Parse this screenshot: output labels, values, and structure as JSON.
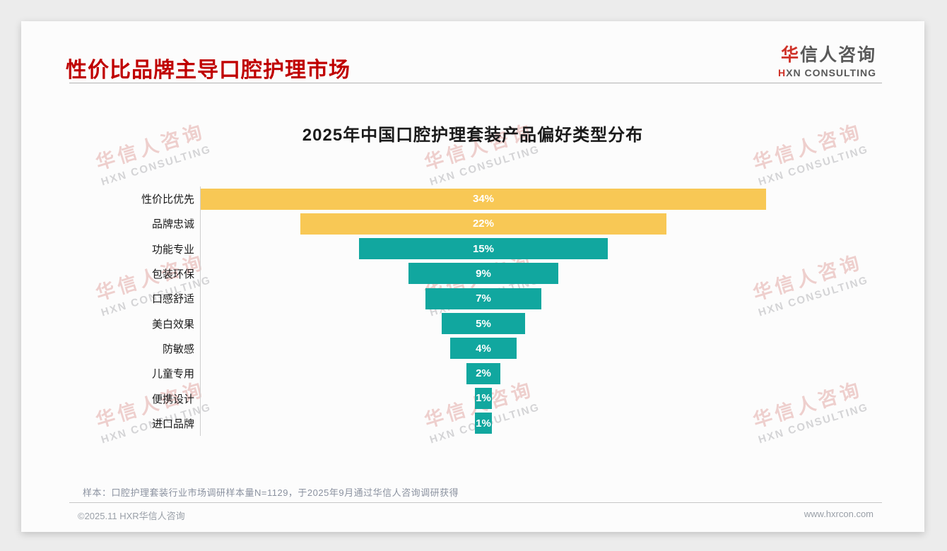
{
  "header": {
    "title": "性价比品牌主导口腔护理市场",
    "logo": {
      "zh_accent": "华",
      "zh_rest": "信人咨询",
      "en_accent": "H",
      "en_rest": "XN CONSULTING"
    }
  },
  "watermark": {
    "zh": "华信人咨询",
    "en": "HXN CONSULTING"
  },
  "chart_data": {
    "type": "bar",
    "orientation": "horizontal-centered-funnel",
    "title": "2025年中国口腔护理套装产品偏好类型分布",
    "categories": [
      "性价比优先",
      "品牌忠诚",
      "功能专业",
      "包装环保",
      "口感舒适",
      "美白效果",
      "防敏感",
      "儿童专用",
      "便携设计",
      "进口品牌"
    ],
    "values": [
      34,
      22,
      15,
      9,
      7,
      5,
      4,
      2,
      1,
      1
    ],
    "value_suffix": "%",
    "series_color_keys": [
      "highlight",
      "highlight",
      "normal",
      "normal",
      "normal",
      "normal",
      "normal",
      "normal",
      "normal",
      "normal"
    ],
    "palette": {
      "highlight": "#f8c855",
      "normal": "#11a79f"
    },
    "value_label_color": "#ffffff",
    "axis": "left-vertical-line-only",
    "xlim": [
      0,
      41.5
    ]
  },
  "footer": {
    "note": "样本：口腔护理套装行业市场调研样本量N=1129，于2025年9月通过华信人咨询调研获得",
    "copyright": "©2025.11 HXR华信人咨询",
    "website": "www.hxrcon.com"
  }
}
